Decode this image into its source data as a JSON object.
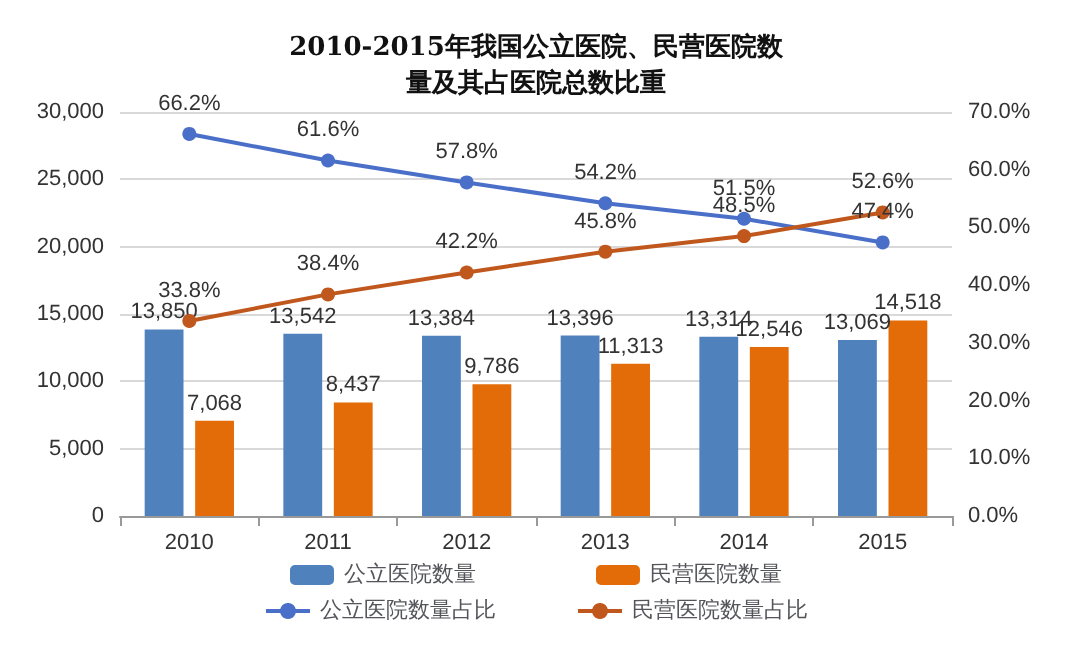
{
  "chart_data": {
    "type": "bar",
    "title": "2010-2015年我国公立医院、民营医院数量及其占医院总数比重",
    "categories": [
      "2010",
      "2011",
      "2012",
      "2013",
      "2014",
      "2015"
    ],
    "series": [
      {
        "name": "公立医院数量",
        "color": "#4f81bd",
        "values": [
          13850,
          13542,
          13384,
          13396,
          13314,
          13069
        ],
        "value_labels": [
          "13,850",
          "13,542",
          "13,384",
          "13,396",
          "13,314",
          "13,069"
        ]
      },
      {
        "name": "民营医院数量",
        "color": "#e36c09",
        "values": [
          7068,
          8437,
          9786,
          11313,
          12546,
          14518
        ],
        "value_labels": [
          "7,068",
          "8,437",
          "9,786",
          "11,313",
          "12,546",
          "14,518"
        ]
      },
      {
        "name": "公立医院数量占比",
        "type": "line",
        "axis": "y2",
        "color": "#4a6fc9",
        "values": [
          66.2,
          61.6,
          57.8,
          54.2,
          51.5,
          47.4
        ],
        "value_labels": [
          "66.2%",
          "61.6%",
          "57.8%",
          "54.2%",
          "51.5%",
          "47.4%"
        ]
      },
      {
        "name": "民营医院数量占比",
        "type": "line",
        "axis": "y2",
        "color": "#c0571c",
        "values": [
          33.8,
          38.4,
          42.2,
          45.8,
          48.5,
          52.6
        ],
        "value_labels": [
          "33.8%",
          "38.4%",
          "42.2%",
          "45.8%",
          "48.5%",
          "52.6%"
        ]
      }
    ],
    "ylim": [
      0,
      30000
    ],
    "yticks": [
      {
        "value": 0,
        "label": "0"
      },
      {
        "value": 5000,
        "label": "5,000"
      },
      {
        "value": 10000,
        "label": "10,000"
      },
      {
        "value": 15000,
        "label": "15,000"
      },
      {
        "value": 20000,
        "label": "20,000"
      },
      {
        "value": 25000,
        "label": "25,000"
      },
      {
        "value": 30000,
        "label": "30,000"
      }
    ],
    "y2lim": [
      0,
      70
    ],
    "y2ticks": [
      {
        "value": 0,
        "label": "0.0%"
      },
      {
        "value": 10,
        "label": "10.0%"
      },
      {
        "value": 20,
        "label": "20.0%"
      },
      {
        "value": 30,
        "label": "30.0%"
      },
      {
        "value": 40,
        "label": "40.0%"
      },
      {
        "value": 50,
        "label": "50.0%"
      },
      {
        "value": 60,
        "label": "60.0%"
      },
      {
        "value": 70,
        "label": "70.0%"
      }
    ],
    "grid": "y",
    "legend": "bottom",
    "marker": "circle",
    "line_style": "solid"
  }
}
